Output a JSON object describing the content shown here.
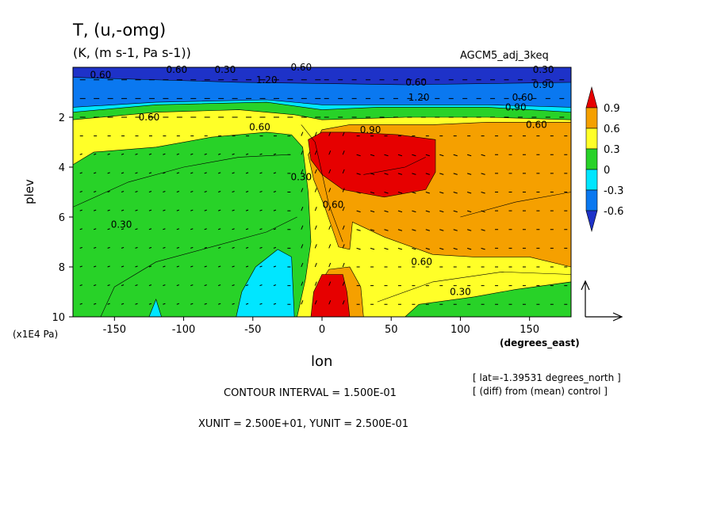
{
  "title": "T, (u,-omg)",
  "subtitle": "(K, (m s-1, Pa s-1))",
  "run_name": "AGCM5_adj_3keq",
  "notes": {
    "lat": "[ lat=-1.39531 degrees_north ]",
    "diff": "[ (diff) from (mean) control ]",
    "contour_interval": "CONTOUR INTERVAL = 1.500E-01",
    "units": "XUNIT = 2.500E+01, YUNIT = 2.500E-01"
  },
  "chart_data": {
    "type": "heatmap",
    "title": "T, (u,-omg)",
    "subtitle": "(K, (m s-1, Pa s-1))",
    "xlabel": "lon",
    "xunit": "(degrees_east)",
    "ylabel": "plev",
    "yunit": "(x1E4 Pa)",
    "xlim": [
      -180,
      180
    ],
    "ylim": [
      10,
      0
    ],
    "x_ticks": [
      -150,
      -100,
      -50,
      0,
      50,
      100,
      150
    ],
    "y_ticks": [
      2,
      4,
      6,
      8,
      10
    ],
    "colorbar": {
      "levels": [
        "0.9",
        "0.6",
        "0.3",
        "0",
        "-0.3",
        "-0.6"
      ],
      "colors": [
        "#e60000",
        "#f5a000",
        "#ffff28",
        "#28d228",
        "#00e6ff",
        "#0a78f0",
        "#1e32c8"
      ]
    },
    "contour_labels": [
      {
        "text": "0.60",
        "lon": -160,
        "plev": 0.3
      },
      {
        "text": "0.30",
        "lon": -70,
        "plev": 0.1
      },
      {
        "text": "0.60",
        "lon": -105,
        "plev": 0.1
      },
      {
        "text": "0.60",
        "lon": -15,
        "plev": 0.0
      },
      {
        "text": "1.20",
        "lon": -40,
        "plev": 0.5
      },
      {
        "text": "0.60",
        "lon": 68,
        "plev": 0.6
      },
      {
        "text": "0.90",
        "lon": 160,
        "plev": 0.7
      },
      {
        "text": "0.30",
        "lon": 160,
        "plev": 0.1
      },
      {
        "text": "1.20",
        "lon": 70,
        "plev": 1.2
      },
      {
        "text": "0.60",
        "lon": 145,
        "plev": 1.2
      },
      {
        "text": "0.90",
        "lon": 140,
        "plev": 1.6
      },
      {
        "text": "0.60",
        "lon": 155,
        "plev": 2.3
      },
      {
        "text": "0.60",
        "lon": -125,
        "plev": 2.0
      },
      {
        "text": "0.60",
        "lon": -45,
        "plev": 2.4
      },
      {
        "text": "0.90",
        "lon": 35,
        "plev": 2.5
      },
      {
        "text": "0.30",
        "lon": -145,
        "plev": 6.3
      },
      {
        "text": "0.30",
        "lon": -15,
        "plev": 4.4
      },
      {
        "text": "0.60",
        "lon": 8,
        "plev": 5.5
      },
      {
        "text": "0.60",
        "lon": 72,
        "plev": 7.8
      },
      {
        "text": "0.30",
        "lon": 100,
        "plev": 9.0
      }
    ]
  }
}
